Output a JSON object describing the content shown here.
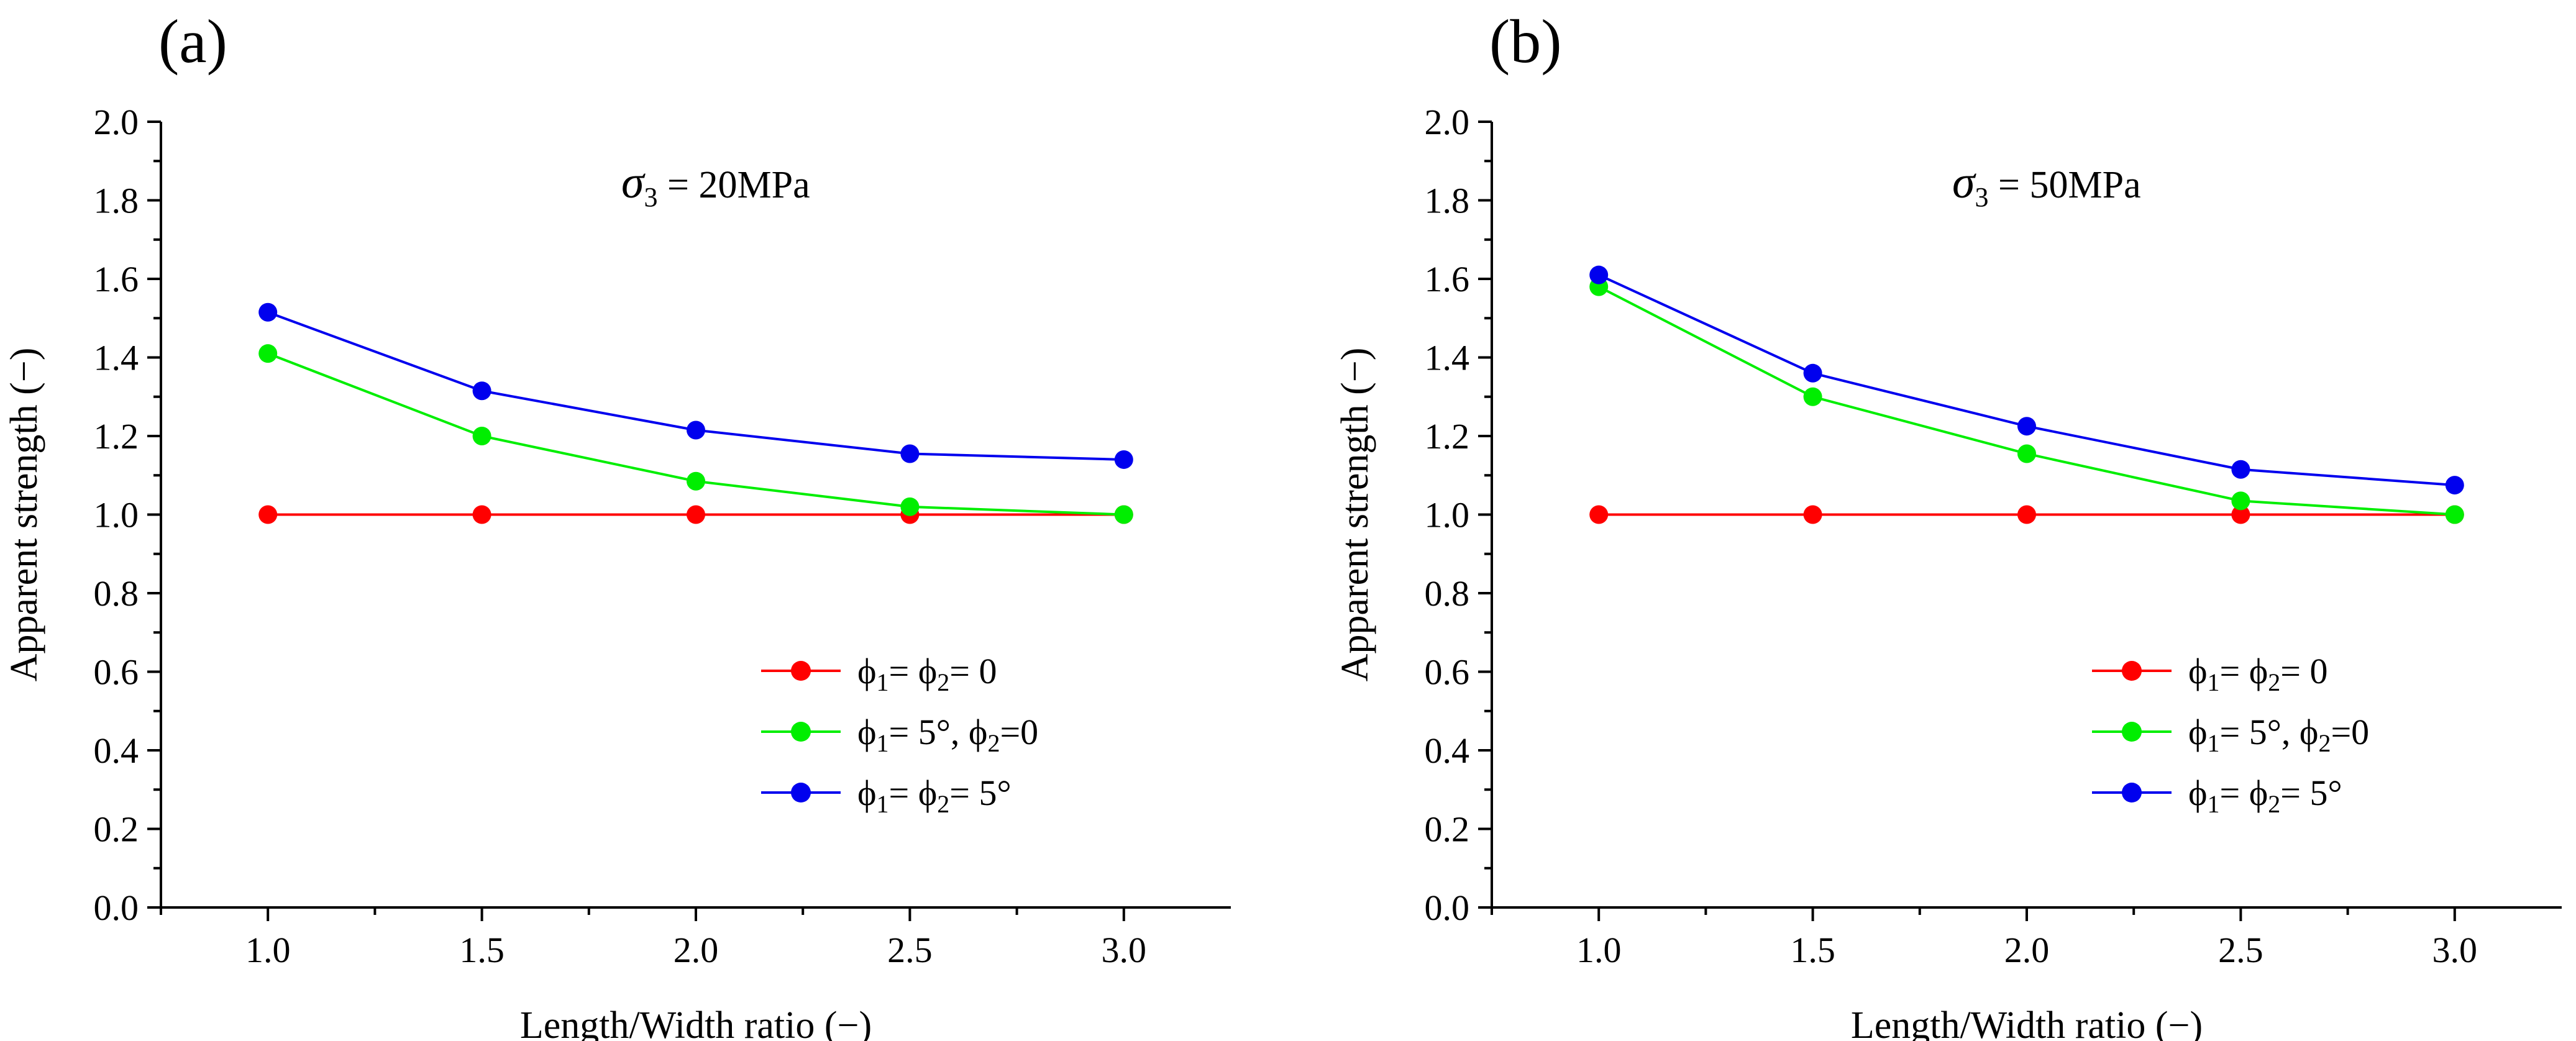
{
  "chart_data": [
    {
      "type": "line",
      "panel_label": "(a)",
      "annotation": {
        "symbol": "σ",
        "subscript": "3",
        "text": " = 20MPa"
      },
      "xlabel": "Length/Width ratio (−)",
      "ylabel": "Apparent strength (−)",
      "xlim": [
        0.75,
        3.25
      ],
      "ylim": [
        0.0,
        2.0
      ],
      "xticks": [
        "1.0",
        "1.5",
        "2.0",
        "2.5",
        "3.0"
      ],
      "xtick_values": [
        1.0,
        1.5,
        2.0,
        2.5,
        3.0
      ],
      "yticks": [
        "0.0",
        "0.2",
        "0.4",
        "0.6",
        "0.8",
        "1.0",
        "1.2",
        "1.4",
        "1.6",
        "1.8",
        "2.0"
      ],
      "ytick_values": [
        0.0,
        0.2,
        0.4,
        0.6,
        0.8,
        1.0,
        1.2,
        1.4,
        1.6,
        1.8,
        2.0
      ],
      "x": [
        1.0,
        1.5,
        2.0,
        2.5,
        3.0
      ],
      "legend_position": "bottom-right",
      "series": [
        {
          "name": "ϕ1= ϕ2= 0",
          "color": "#ff0000",
          "values": [
            1.0,
            1.0,
            1.0,
            1.0,
            1.0
          ],
          "legend": {
            "p1": "ϕ",
            "s1": "1",
            "m1": "= ϕ",
            "s2": "2",
            "end": "= 0"
          }
        },
        {
          "name": "ϕ1= 5°, ϕ2=0",
          "color": "#00ee00",
          "values": [
            1.41,
            1.2,
            1.085,
            1.02,
            1.0
          ],
          "legend": {
            "p1": "ϕ",
            "s1": "1",
            "m1": "= 5°, ϕ",
            "s2": "2",
            "end": "=0"
          }
        },
        {
          "name": "ϕ1= ϕ2= 5°",
          "color": "#0000ee",
          "values": [
            1.515,
            1.315,
            1.215,
            1.155,
            1.14
          ],
          "legend": {
            "p1": "ϕ",
            "s1": "1",
            "m1": "= ϕ",
            "s2": "2",
            "end": "= 5°"
          }
        }
      ]
    },
    {
      "type": "line",
      "panel_label": "(b)",
      "annotation": {
        "symbol": "σ",
        "subscript": "3",
        "text": " = 50MPa"
      },
      "xlabel": "Length/Width ratio (−)",
      "ylabel": "Apparent strength (−)",
      "xlim": [
        0.75,
        3.25
      ],
      "ylim": [
        0.0,
        2.0
      ],
      "xticks": [
        "1.0",
        "1.5",
        "2.0",
        "2.5",
        "3.0"
      ],
      "xtick_values": [
        1.0,
        1.5,
        2.0,
        2.5,
        3.0
      ],
      "yticks": [
        "0.0",
        "0.2",
        "0.4",
        "0.6",
        "0.8",
        "1.0",
        "1.2",
        "1.4",
        "1.6",
        "1.8",
        "2.0"
      ],
      "ytick_values": [
        0.0,
        0.2,
        0.4,
        0.6,
        0.8,
        1.0,
        1.2,
        1.4,
        1.6,
        1.8,
        2.0
      ],
      "x": [
        1.0,
        1.5,
        2.0,
        2.5,
        3.0
      ],
      "legend_position": "bottom-right",
      "series": [
        {
          "name": "ϕ1= ϕ2= 0",
          "color": "#ff0000",
          "values": [
            1.0,
            1.0,
            1.0,
            1.0,
            1.0
          ],
          "legend": {
            "p1": "ϕ",
            "s1": "1",
            "m1": "= ϕ",
            "s2": "2",
            "end": "= 0"
          }
        },
        {
          "name": "ϕ1= 5°, ϕ2=0",
          "color": "#00ee00",
          "values": [
            1.58,
            1.3,
            1.155,
            1.035,
            1.0
          ],
          "legend": {
            "p1": "ϕ",
            "s1": "1",
            "m1": "= 5°, ϕ",
            "s2": "2",
            "end": "=0"
          }
        },
        {
          "name": "ϕ1= ϕ2= 5°",
          "color": "#0000ee",
          "values": [
            1.61,
            1.36,
            1.225,
            1.115,
            1.075
          ],
          "legend": {
            "p1": "ϕ",
            "s1": "1",
            "m1": "= ϕ",
            "s2": "2",
            "end": "= 5°"
          }
        }
      ]
    }
  ]
}
